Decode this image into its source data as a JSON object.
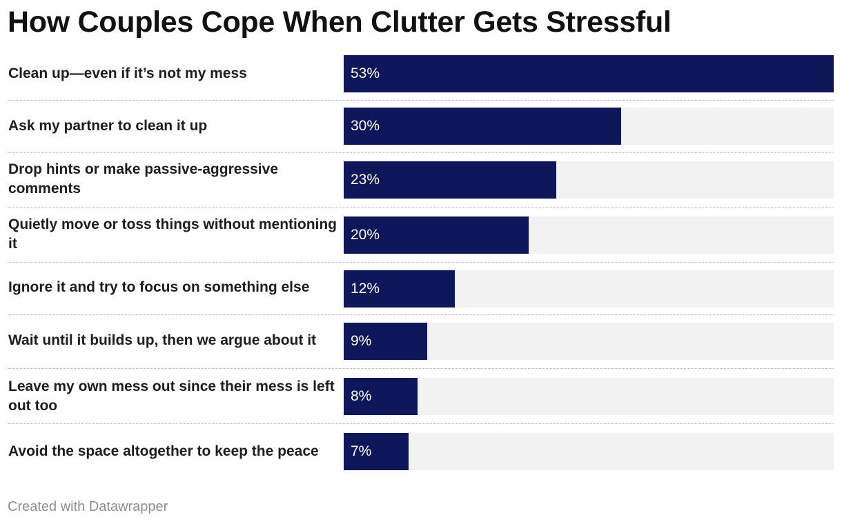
{
  "chart_data": {
    "type": "bar",
    "orientation": "horizontal",
    "title": "How Couples Cope When Clutter Gets Stressful",
    "categories": [
      "Clean up—even if it’s not my mess",
      "Ask my partner to clean it up",
      "Drop hints or make passive-aggressive comments",
      "Quietly move or toss things without mentioning it",
      "Ignore it and try to focus on something else",
      "Wait until it builds up, then we argue about it",
      "Leave my own mess out since their mess is left out too",
      "Avoid the space altogether to keep the peace"
    ],
    "values": [
      53,
      30,
      23,
      20,
      12,
      9,
      8,
      7
    ],
    "value_labels": [
      "53%",
      "30%",
      "23%",
      "20%",
      "12%",
      "9%",
      "8%",
      "7%"
    ],
    "unit": "%",
    "xlim": [
      0,
      53
    ],
    "bar_color": "#0d175a",
    "track_color": "#f2f2f2",
    "xlabel": "",
    "ylabel": ""
  },
  "footer": {
    "credit": "Created with Datawrapper"
  }
}
